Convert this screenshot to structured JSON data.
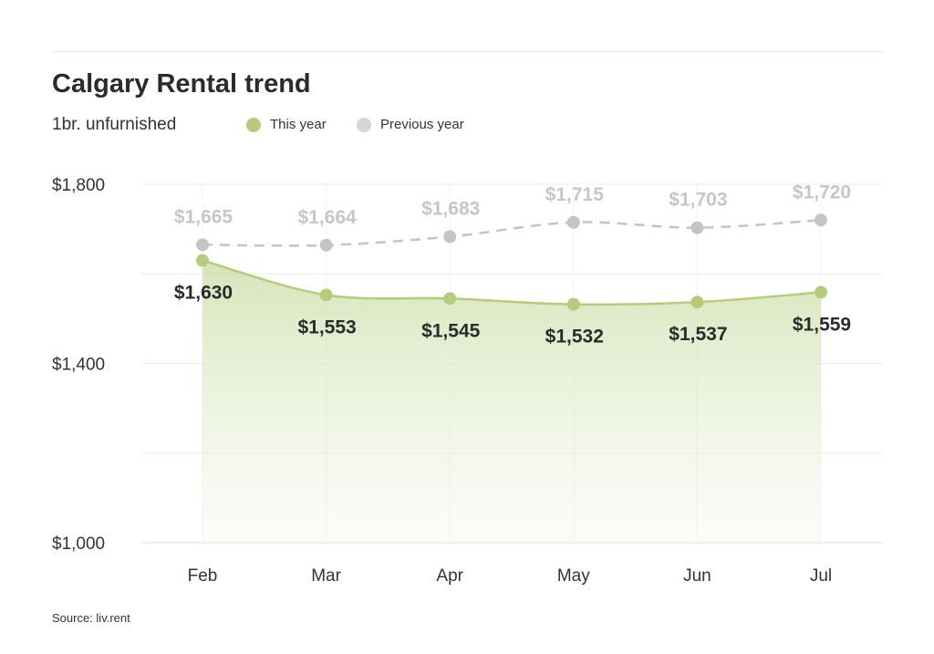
{
  "title": "Calgary Rental trend",
  "subtitle": "1br. unfurnished",
  "legend": [
    {
      "label": "This year",
      "color": "#b5cc7d"
    },
    {
      "label": "Previous year",
      "color": "#d6d6d6"
    }
  ],
  "source": "Source: liv.rent",
  "chart_data": {
    "type": "line",
    "categories": [
      "Feb",
      "Mar",
      "Apr",
      "May",
      "Jun",
      "Jul"
    ],
    "series": [
      {
        "name": "This year",
        "values": [
          1630,
          1553,
          1545,
          1532,
          1537,
          1559
        ],
        "labels": [
          "$1,630",
          "$1,553",
          "$1,545",
          "$1,532",
          "$1,537",
          "$1,559"
        ],
        "color": "#b5cc7d",
        "style": "solid",
        "area": true
      },
      {
        "name": "Previous year",
        "values": [
          1665,
          1664,
          1683,
          1715,
          1703,
          1720
        ],
        "labels": [
          "$1,665",
          "$1,664",
          "$1,683",
          "$1,715",
          "$1,703",
          "$1,720"
        ],
        "color": "#c4c4c4",
        "style": "dashed",
        "area": false
      }
    ],
    "y_ticks": [
      1000,
      1400,
      1800
    ],
    "y_tick_labels": [
      "$1,000",
      "$1,400",
      "$1,800"
    ],
    "ylim": [
      1000,
      1800
    ],
    "grid": true,
    "legend_position": "top"
  }
}
